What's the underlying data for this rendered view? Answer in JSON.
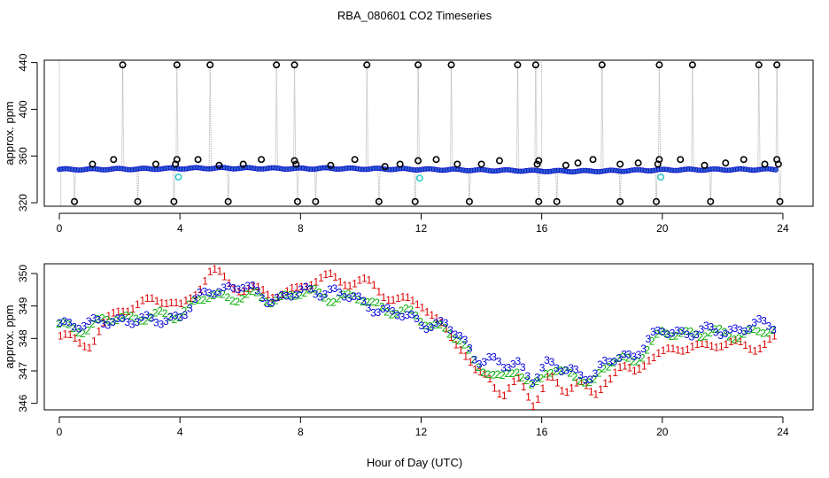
{
  "title": "RBA_080601  CO2 Timeseries",
  "xlabel": "Hour of Day (UTC)",
  "colors": {
    "flag1": "#dd0000",
    "flag2": "#00aa00",
    "flag3": "#0000dd",
    "outlier": "#000000",
    "cyan": "#33cccc",
    "connector": "#aaaaaa",
    "overview_fill": "#3366cc"
  },
  "chart_data": [
    {
      "type": "scatter",
      "name": "overview",
      "ylabel": "approx. ppm",
      "xlim": [
        -0.5,
        25
      ],
      "ylim": [
        317,
        442
      ],
      "xticks": [
        0,
        4,
        8,
        12,
        16,
        20,
        24
      ],
      "yticks": [
        320,
        360,
        400,
        440
      ],
      "baseline": {
        "x": [
          0,
          1,
          2,
          3,
          4,
          5,
          6,
          7,
          8,
          9,
          10,
          11,
          12,
          13,
          14,
          15,
          16,
          17,
          18,
          19,
          20,
          21,
          22,
          23,
          23.8
        ],
        "y": [
          348.5,
          348.6,
          348.8,
          349.0,
          349.4,
          349.6,
          349.6,
          349.4,
          349.2,
          349.4,
          349.1,
          348.9,
          348.6,
          348.3,
          347.8,
          347.6,
          347.2,
          347.0,
          347.1,
          347.6,
          348.1,
          348.3,
          348.4,
          348.5,
          348.5
        ]
      },
      "outliers_high": [
        2.1,
        3.9,
        5.0,
        7.2,
        7.8,
        10.2,
        11.9,
        13.0,
        15.2,
        15.8,
        18.0,
        19.9,
        21.0,
        23.2,
        23.8
      ],
      "outliers_low": [
        0.5,
        2.6,
        3.8,
        5.6,
        7.9,
        8.5,
        10.6,
        11.8,
        13.6,
        15.9,
        16.5,
        18.6,
        19.8,
        21.6,
        23.9
      ],
      "outliers_mid": [
        [
          1.1,
          353
        ],
        [
          1.8,
          357
        ],
        [
          3.2,
          353
        ],
        [
          3.9,
          357
        ],
        [
          3.85,
          353
        ],
        [
          4.6,
          357
        ],
        [
          5.3,
          352
        ],
        [
          6.1,
          353
        ],
        [
          6.7,
          357
        ],
        [
          7.8,
          356
        ],
        [
          7.85,
          353
        ],
        [
          9.0,
          352
        ],
        [
          9.8,
          357
        ],
        [
          10.8,
          351
        ],
        [
          11.3,
          353
        ],
        [
          11.9,
          356
        ],
        [
          12.5,
          357
        ],
        [
          13.2,
          353
        ],
        [
          14.0,
          353
        ],
        [
          14.6,
          356
        ],
        [
          15.9,
          356
        ],
        [
          15.85,
          353
        ],
        [
          16.8,
          352
        ],
        [
          17.2,
          354
        ],
        [
          17.7,
          357
        ],
        [
          18.6,
          353
        ],
        [
          19.2,
          354
        ],
        [
          19.9,
          357
        ],
        [
          19.85,
          353
        ],
        [
          20.6,
          357
        ],
        [
          21.4,
          352
        ],
        [
          22.1,
          354
        ],
        [
          22.7,
          357
        ],
        [
          23.4,
          353
        ],
        [
          23.8,
          357
        ],
        [
          23.85,
          353
        ]
      ],
      "cyan_points": [
        [
          3.95,
          342
        ],
        [
          11.95,
          341
        ],
        [
          19.95,
          342
        ]
      ]
    },
    {
      "type": "scatter",
      "name": "detail",
      "ylabel": "approx. ppm",
      "xlim": [
        -0.5,
        25
      ],
      "ylim": [
        345.8,
        350.3
      ],
      "xticks": [
        0,
        4,
        8,
        12,
        16,
        20,
        24
      ],
      "yticks": [
        346,
        347,
        348,
        349,
        350
      ],
      "series": [
        {
          "name": "1",
          "x": [
            0,
            1,
            2,
            3,
            4,
            5,
            6,
            7,
            8,
            9,
            10,
            11,
            12,
            12.8,
            13.3,
            13.8,
            14.2,
            14.7,
            15.2,
            15.7,
            16.2,
            16.7,
            17.2,
            17.7,
            18.1,
            18.5,
            19,
            19.5,
            20,
            21,
            22,
            23,
            23.8
          ],
          "y": [
            348.0,
            347.9,
            348.9,
            349.2,
            349.0,
            350.0,
            349.6,
            349.3,
            349.6,
            349.9,
            349.7,
            349.3,
            349.0,
            348.3,
            347.7,
            346.8,
            346.9,
            346.3,
            346.6,
            346.0,
            346.9,
            346.3,
            346.7,
            346.2,
            346.8,
            347.0,
            346.9,
            347.5,
            347.5,
            347.8,
            347.8,
            347.8,
            347.9
          ]
        },
        {
          "name": "2",
          "x": [
            0,
            1,
            2,
            3,
            4,
            5,
            6,
            7,
            8,
            9,
            10,
            11,
            12,
            12.8,
            13.3,
            13.8,
            14.2,
            14.7,
            15.2,
            15.7,
            16.2,
            16.7,
            17.2,
            17.7,
            18.1,
            18.5,
            19,
            19.5,
            20,
            21,
            22,
            23,
            23.8
          ],
          "y": [
            348.4,
            348.3,
            348.7,
            348.6,
            348.8,
            349.3,
            349.3,
            349.2,
            349.4,
            349.3,
            349.2,
            348.9,
            348.6,
            348.3,
            347.9,
            347.2,
            347.1,
            346.7,
            347.0,
            346.5,
            347.1,
            346.8,
            346.9,
            346.6,
            347.1,
            347.3,
            347.3,
            347.7,
            348.1,
            348.2,
            348.1,
            348.2,
            348.2
          ]
        },
        {
          "name": "3",
          "x": [
            0,
            1,
            2,
            3,
            4,
            5,
            6,
            7,
            8,
            9,
            10,
            11,
            12,
            12.8,
            13.3,
            13.8,
            14.2,
            14.7,
            15.2,
            15.7,
            16.2,
            16.7,
            17.2,
            17.7,
            18.1,
            18.5,
            19,
            19.5,
            20,
            21,
            22,
            23,
            23.8
          ],
          "y": [
            348.5,
            348.4,
            348.6,
            348.5,
            348.7,
            349.5,
            349.6,
            349.2,
            349.4,
            349.5,
            349.1,
            348.8,
            348.5,
            348.4,
            348.0,
            347.4,
            347.4,
            347.1,
            347.2,
            346.8,
            347.2,
            347.0,
            347.0,
            346.8,
            347.2,
            347.4,
            347.5,
            347.9,
            348.2,
            348.2,
            348.2,
            348.4,
            348.4
          ]
        }
      ]
    }
  ]
}
